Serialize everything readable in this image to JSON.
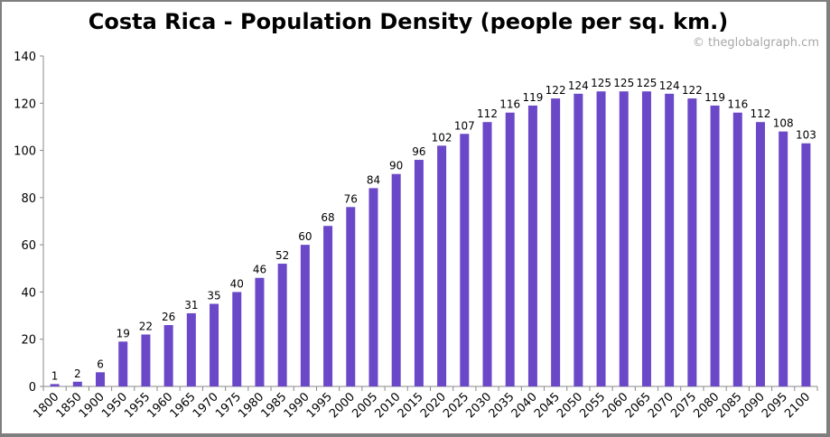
{
  "chart_data": {
    "type": "bar",
    "title": "Costa Rica - Population Density (people per sq. km.)",
    "watermark": "© theglobalgraph.cm",
    "categories": [
      "1800",
      "1850",
      "1900",
      "1950",
      "1955",
      "1960",
      "1965",
      "1970",
      "1975",
      "1980",
      "1985",
      "1990",
      "1995",
      "2000",
      "2005",
      "2010",
      "2015",
      "2020",
      "2025",
      "2030",
      "2035",
      "2040",
      "2045",
      "2050",
      "2055",
      "2060",
      "2065",
      "2070",
      "2075",
      "2080",
      "2085",
      "2090",
      "2095",
      "2100"
    ],
    "values": [
      1,
      2,
      6,
      19,
      22,
      26,
      31,
      35,
      40,
      46,
      52,
      60,
      68,
      76,
      84,
      90,
      96,
      102,
      107,
      112,
      116,
      119,
      122,
      124,
      125,
      125,
      125,
      124,
      122,
      119,
      116,
      112,
      108,
      103
    ],
    "xlabel": "",
    "ylabel": "",
    "ylim": [
      0,
      140
    ],
    "yticks": [
      0,
      20,
      40,
      60,
      80,
      100,
      120,
      140
    ],
    "grid": false,
    "bar_color": "#6a48c8",
    "data_labels": true
  }
}
